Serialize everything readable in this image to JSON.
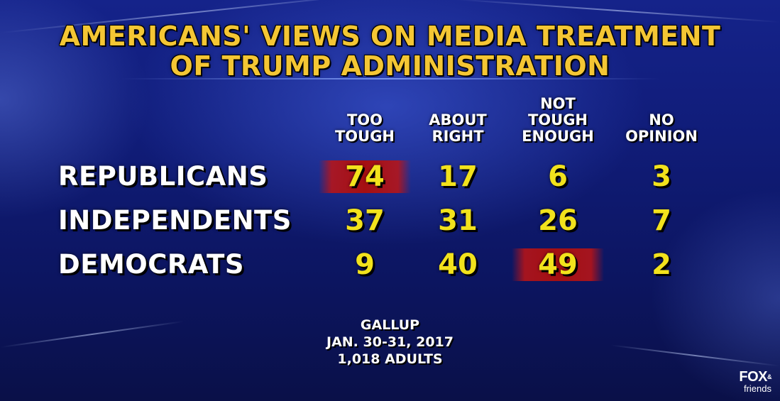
{
  "title_lines": [
    "AMERICANS' VIEWS ON MEDIA TREATMENT",
    "OF TRUMP ADMINISTRATION"
  ],
  "logo": {
    "main": "FOX",
    "amp": "&",
    "sub": "friends"
  },
  "source_lines": [
    "GALLUP",
    "JAN. 30-31, 2017",
    "1,018 ADULTS"
  ],
  "colors": {
    "title": "#f4c634",
    "values": "#f2e21c",
    "highlight": "#a50f12",
    "labels": "#ffffff"
  },
  "chart_data": {
    "type": "table",
    "columns": [
      {
        "lines": [
          "TOO",
          "TOUGH"
        ]
      },
      {
        "lines": [
          "ABOUT",
          "RIGHT"
        ]
      },
      {
        "lines": [
          "NOT",
          "TOUGH",
          "ENOUGH"
        ]
      },
      {
        "lines": [
          "NO",
          "OPINION"
        ]
      }
    ],
    "rows": [
      {
        "label": "REPUBLICANS",
        "values": [
          74,
          17,
          6,
          3
        ],
        "highlight_index": 0
      },
      {
        "label": "INDEPENDENTS",
        "values": [
          37,
          31,
          26,
          7
        ],
        "highlight_index": null
      },
      {
        "label": "DEMOCRATS",
        "values": [
          9,
          40,
          49,
          2
        ],
        "highlight_index": 2
      }
    ]
  }
}
